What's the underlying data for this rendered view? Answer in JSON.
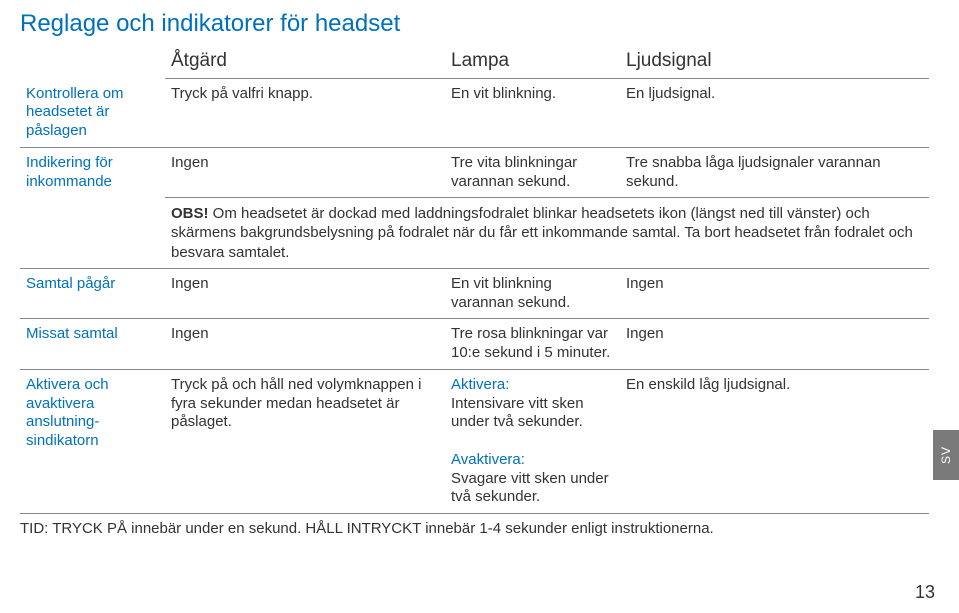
{
  "title": "Reglage och indikatorer för headset",
  "colors": {
    "accent": "#0071bc",
    "text": "#333333",
    "rule": "#888888",
    "tab_bg": "#7a7a7a",
    "tab_fg": "#ffffff"
  },
  "headers": {
    "col1": "",
    "col2": "Åtgärd",
    "col3": "Lampa",
    "col4": "Ljudsignal"
  },
  "rows": {
    "r1": {
      "label": "Kontrollera om headsetet är påslagen",
      "action": "Tryck på valfri knapp.",
      "lamp": "En vit blinkning.",
      "sound": "En ljudsignal."
    },
    "r2": {
      "label": "Indikering för inkommande",
      "action": "Ingen",
      "lamp": "Tre vita blinkningar varannan sekund.",
      "sound": "Tre snabba låga ljudsignaler varannan sekund."
    },
    "note": {
      "bold": "OBS!",
      "text": " Om headsetet är dockad med laddningsfodralet blinkar headsetets ikon (längst ned till vänster) och skärmens bakgrundsbelysning på fodralet när du får ett inkommande samtal. Ta bort headsetet från fodralet och besvara samtalet."
    },
    "r3": {
      "label": "Samtal pågår",
      "action": "Ingen",
      "lamp": "En vit blinkning varannan sekund.",
      "sound": "Ingen"
    },
    "r4": {
      "label": "Missat samtal",
      "action": "Ingen",
      "lamp": "Tre rosa blinkningar var 10:e sekund i 5 minuter.",
      "sound": "Ingen"
    },
    "r5": {
      "label": "Aktivera och avaktivera anslutning-sindikatorn",
      "action": "Tryck på och håll ned volymknappen i fyra sekunder medan headsetet är påslaget.",
      "lamp_a_title": "Aktivera:",
      "lamp_a": "Intensivare vitt sken under två sekunder.",
      "lamp_b_title": "Avaktivera:",
      "lamp_b": "Svagare vitt sken under två sekunder.",
      "sound": "En enskild låg ljudsignal."
    }
  },
  "footer": "TID: TRYCK PÅ innebär under en sekund. HÅLL INTRYCKT innebär 1-4 sekunder enligt instruktionerna.",
  "side_tab": "SV",
  "page_number": "13",
  "typography": {
    "title_pt": 24,
    "header_pt": 19,
    "body_pt": 15
  }
}
